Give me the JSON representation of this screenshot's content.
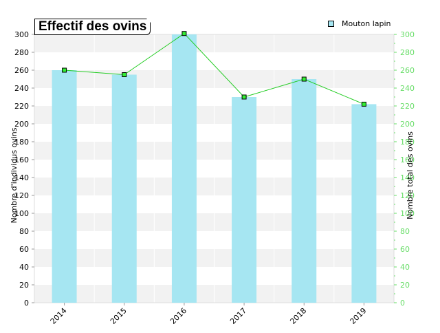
{
  "colors": {
    "bar_fill": "#a6e6f2",
    "line": "#22cc22",
    "marker_fill": "#33ee33",
    "marker_stroke": "#000000",
    "band": "#f2f2f2",
    "left_axis_text": "#000000",
    "right_axis_text": "#66dd66"
  },
  "chart_data": {
    "type": "bar",
    "title": "Effectif des ovins",
    "categories": [
      "2014",
      "2015",
      "2016",
      "2017",
      "2018",
      "2019"
    ],
    "series": [
      {
        "name": "Mouton lapin",
        "type": "bar",
        "axis": "left",
        "values": [
          260,
          255,
          300,
          230,
          250,
          222
        ]
      },
      {
        "type": "line",
        "axis": "right",
        "values": [
          260,
          255,
          301,
          230,
          250,
          222
        ]
      }
    ],
    "ylabel": "Nombre d'individus ovins",
    "ylabel_right": "Nombre total des ovins",
    "ylim": [
      0,
      300
    ],
    "yticks": [
      0,
      20,
      40,
      60,
      80,
      100,
      120,
      140,
      160,
      180,
      200,
      220,
      240,
      260,
      280,
      300
    ],
    "grid": "alternating horizontal bands",
    "legend_position": "top-right"
  }
}
